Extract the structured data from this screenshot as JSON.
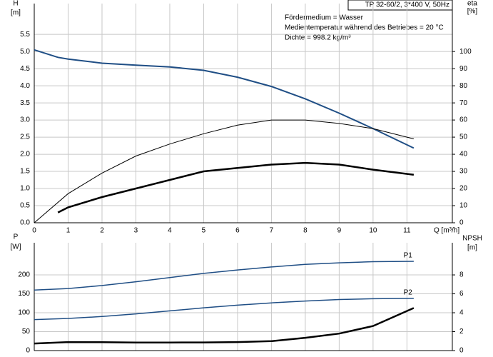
{
  "chart_data": [
    {
      "type": "line",
      "y_label": [
        "H",
        "[m]"
      ],
      "y2_label": [
        "eta",
        "[%]"
      ],
      "x_label": "Q [m³/h]",
      "xlim": [
        0,
        12.34
      ],
      "xticks": [
        0,
        1,
        2,
        3,
        4,
        5,
        6,
        7,
        8,
        9,
        10,
        11
      ],
      "ylim": [
        0,
        6.4
      ],
      "yticks": [
        {
          "value": 0,
          "label": "0.0"
        },
        0.5,
        {
          "value": 1,
          "label": "1.0"
        },
        1.5,
        {
          "value": 2,
          "label": "2.0"
        },
        2.5,
        {
          "value": 3,
          "label": "3.0"
        },
        3.5,
        {
          "value": 4,
          "label": "4.0"
        },
        4.5,
        {
          "value": 5,
          "label": "5.0"
        },
        5.5
      ],
      "y2lim": [
        0,
        128
      ],
      "y2ticks": [
        0,
        10,
        20,
        30,
        40,
        50,
        60,
        70,
        80,
        90,
        100
      ],
      "grid": true,
      "annotations": [
        "TP 32-60/2, 3*400 V, 50Hz",
        "Fördermedium = Wasser",
        "Medientemperatur während des Betriebes = 20 °C",
        "Dichte = 998.2 kg/m³"
      ],
      "series": [
        {
          "color": "#1f4e85",
          "line_width": 2,
          "x": [
            0,
            0.7,
            1,
            2,
            3,
            4,
            5,
            6,
            7,
            8,
            9,
            10,
            11.2
          ],
          "values": [
            5.05,
            4.83,
            4.78,
            4.66,
            4.6,
            4.55,
            4.45,
            4.25,
            3.98,
            3.62,
            3.2,
            2.75,
            2.18
          ]
        },
        {
          "color": "#000000",
          "line_width": 1,
          "axis": "y2",
          "x": [
            0,
            1,
            2,
            3,
            4,
            5,
            6,
            7,
            8,
            9,
            10,
            11.2
          ],
          "values": [
            0,
            17,
            29,
            39,
            46,
            52,
            57,
            60,
            60,
            58,
            55,
            49
          ]
        },
        {
          "color": "#000000",
          "line_width": 2.5,
          "axis": "y2",
          "x": [
            0.7,
            1,
            2,
            3,
            4,
            5,
            6,
            7,
            8,
            9,
            10,
            11.2
          ],
          "values": [
            6,
            9,
            15,
            20,
            25,
            30,
            32,
            34,
            35,
            34,
            31,
            28
          ]
        }
      ]
    },
    {
      "type": "line",
      "y_label": [
        "P",
        "[W]"
      ],
      "y2_label": [
        "NPSH",
        "[m]"
      ],
      "ylim": [
        0,
        285
      ],
      "yticks": [
        0,
        50,
        100,
        150,
        200
      ],
      "y2lim": [
        0,
        11.4
      ],
      "y2ticks": [
        0,
        2,
        4,
        6,
        8
      ],
      "grid": true,
      "series": [
        {
          "name": "P1",
          "color": "#1f4e85",
          "line_width": 1.5,
          "x": [
            0,
            1,
            2,
            3,
            4,
            5,
            6,
            7,
            8,
            9,
            10,
            11.2
          ],
          "values": [
            160,
            164,
            172,
            182,
            193,
            204,
            213,
            221,
            228,
            232,
            235,
            236
          ]
        },
        {
          "name": "P2",
          "color": "#1f4e85",
          "line_width": 1.5,
          "x": [
            0,
            1,
            2,
            3,
            4,
            5,
            6,
            7,
            8,
            9,
            10,
            11.2
          ],
          "values": [
            82,
            85,
            90,
            97,
            105,
            113,
            120,
            126,
            131,
            135,
            137,
            138
          ]
        },
        {
          "color": "#000000",
          "line_width": 2.5,
          "axis": "y2",
          "x": [
            0,
            1,
            2,
            3,
            4,
            5,
            6,
            7,
            8,
            9,
            10,
            11.2
          ],
          "values": [
            0.75,
            0.9,
            0.88,
            0.85,
            0.85,
            0.86,
            0.9,
            1.0,
            1.35,
            1.8,
            2.6,
            4.5
          ]
        }
      ]
    }
  ]
}
